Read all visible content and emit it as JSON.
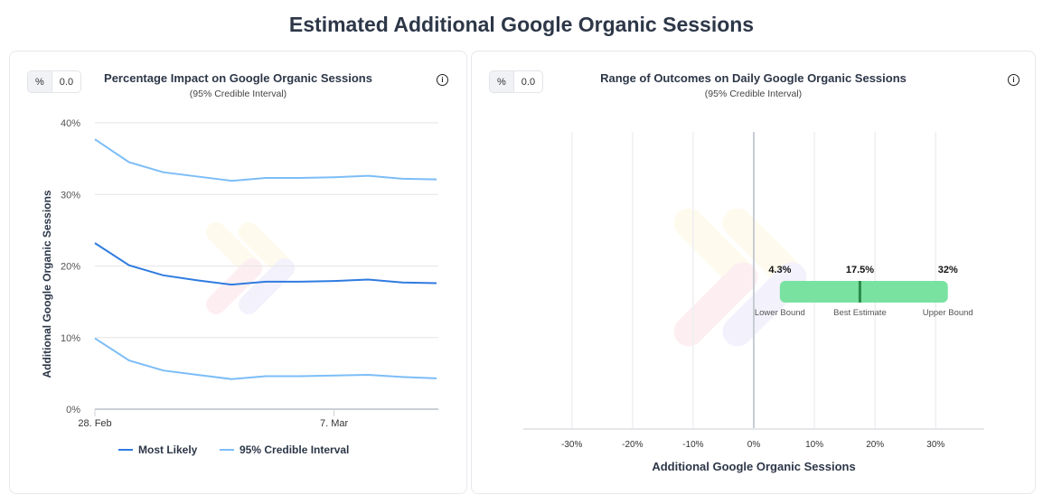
{
  "page": {
    "title": "Estimated Additional Google Organic Sessions"
  },
  "left_panel": {
    "unit_toggle": "%",
    "value_field": "0.0",
    "title": "Percentage Impact on Google Organic Sessions",
    "subtitle": "(95% Credible Interval)",
    "info_icon": "info-circle-icon"
  },
  "right_panel": {
    "unit_toggle": "%",
    "value_field": "0.0",
    "title": "Range of Outcomes on Daily Google Organic Sessions",
    "subtitle": "(95% Credible Interval)",
    "info_icon": "info-circle-icon"
  },
  "chart_data": [
    {
      "type": "line",
      "title": "Percentage Impact on Google Organic Sessions",
      "ylabel": "Additional Google Organic Sessions",
      "ylim": [
        0,
        40
      ],
      "yticks": [
        "0%",
        "10%",
        "20%",
        "30%",
        "40%"
      ],
      "x": [
        "28. Feb",
        "1. Mar",
        "2. Mar",
        "3. Mar",
        "4. Mar",
        "5. Mar",
        "6. Mar",
        "7. Mar",
        "8. Mar",
        "9. Mar",
        "10. Mar"
      ],
      "xticks": [
        "28. Feb",
        "7. Mar"
      ],
      "grid": true,
      "legend": "bottom",
      "series": [
        {
          "name": "Most Likely",
          "color": "#2f7be0",
          "values": [
            23.2,
            20.1,
            18.7,
            18.0,
            17.4,
            17.8,
            17.8,
            17.9,
            18.1,
            17.7,
            17.6
          ]
        },
        {
          "name": "95% Credible Interval",
          "color": "#7cbdf7",
          "values": [
            37.7,
            34.5,
            33.1,
            32.5,
            31.9,
            32.3,
            32.3,
            32.4,
            32.6,
            32.2,
            32.1
          ]
        },
        {
          "name": "95% Credible Interval",
          "color": "#7cbdf7",
          "values": [
            9.9,
            6.8,
            5.4,
            4.8,
            4.2,
            4.6,
            4.6,
            4.7,
            4.8,
            4.5,
            4.3
          ]
        }
      ]
    },
    {
      "type": "bar",
      "title": "Range of Outcomes on Daily Google Organic Sessions",
      "xlabel": "Additional Google Organic Sessions",
      "xlim": [
        -38,
        38
      ],
      "xticks": [
        "-30%",
        "-20%",
        "-10%",
        "0%",
        "10%",
        "20%",
        "30%"
      ],
      "grid": true,
      "range": {
        "lower": {
          "value": 4.3,
          "label": "4.3%",
          "caption": "Lower Bound"
        },
        "best": {
          "value": 17.5,
          "label": "17.5%",
          "caption": "Best Estimate"
        },
        "upper": {
          "value": 32,
          "label": "32%",
          "caption": "Upper Bound"
        },
        "bar_color": "#7ae2a0",
        "marker_color": "#2a8a4a"
      }
    }
  ]
}
